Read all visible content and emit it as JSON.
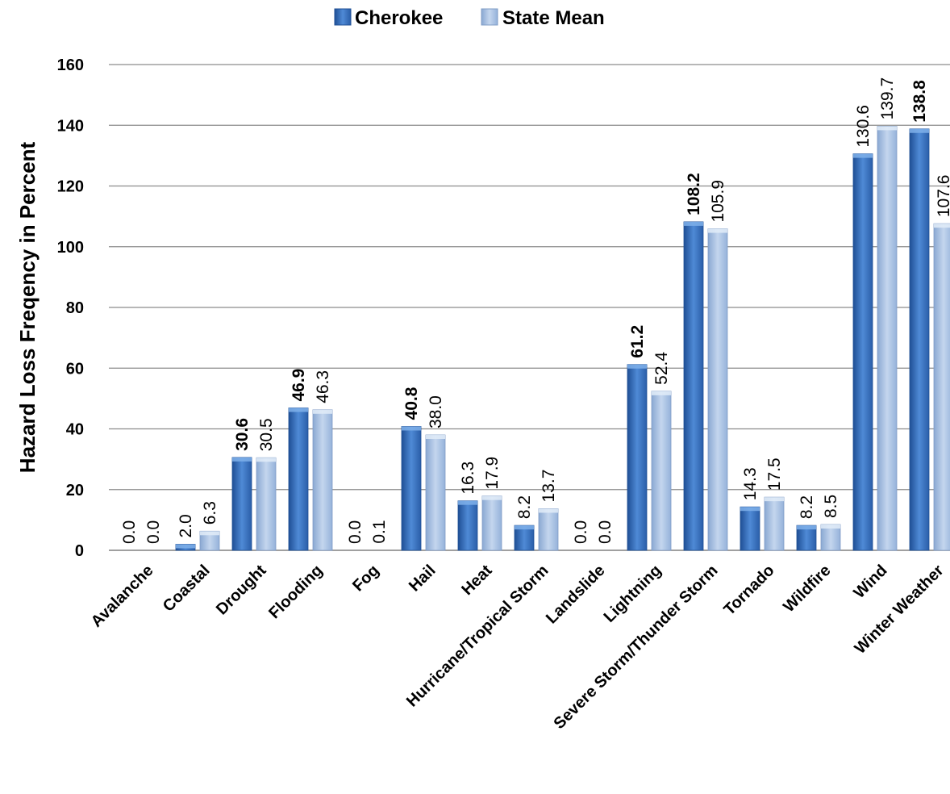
{
  "chart_data": {
    "type": "bar",
    "ylabel": "Hazard Loss Freqency in Percent",
    "xlabel": "",
    "ylim": [
      0,
      160
    ],
    "y_ticks": [
      "0",
      "20",
      "40",
      "60",
      "80",
      "100",
      "120",
      "140",
      "160"
    ],
    "grid": true,
    "legend_position": "top-center",
    "categories": [
      "Avalanche",
      "Coastal",
      "Drought",
      "Flooding",
      "Fog",
      "Hail",
      "Heat",
      "Hurricane/Tropical Storm",
      "Landslide",
      "Lightning",
      "Severe Storm/Thunder Storm",
      "Tornado",
      "Wildfire",
      "Wind",
      "Winter Weather"
    ],
    "series": [
      {
        "name": "Cherokee",
        "color": "#3a74c4",
        "values": [
          0.0,
          2.0,
          30.6,
          46.9,
          0.0,
          40.8,
          16.3,
          8.2,
          0.0,
          61.2,
          108.2,
          14.3,
          8.2,
          130.6,
          138.8
        ],
        "labels": [
          "0.0",
          "2.0",
          "30.6",
          "46.9",
          "0.0",
          "40.8",
          "16.3",
          "8.2",
          "0.0",
          "61.2",
          "108.2",
          "14.3",
          "8.2",
          "130.6",
          "138.8"
        ],
        "highlighted": [
          false,
          false,
          true,
          true,
          false,
          true,
          false,
          false,
          false,
          true,
          true,
          false,
          false,
          false,
          true
        ]
      },
      {
        "name": "State Mean",
        "color": "#9fbbe0",
        "values": [
          0.0,
          6.3,
          30.5,
          46.3,
          0.1,
          38.0,
          17.9,
          13.7,
          0.0,
          52.4,
          105.9,
          17.5,
          8.5,
          139.7,
          107.6
        ],
        "labels": [
          "0.0",
          "6.3",
          "30.5",
          "46.3",
          "0.1",
          "38.0",
          "17.9",
          "13.7",
          "0.0",
          "52.4",
          "105.9",
          "17.5",
          "8.5",
          "139.7",
          "107.6"
        ],
        "highlighted": [
          false,
          false,
          false,
          false,
          false,
          false,
          false,
          false,
          false,
          false,
          false,
          false,
          false,
          false,
          false
        ]
      }
    ],
    "highlight_color": "#ff0000"
  }
}
